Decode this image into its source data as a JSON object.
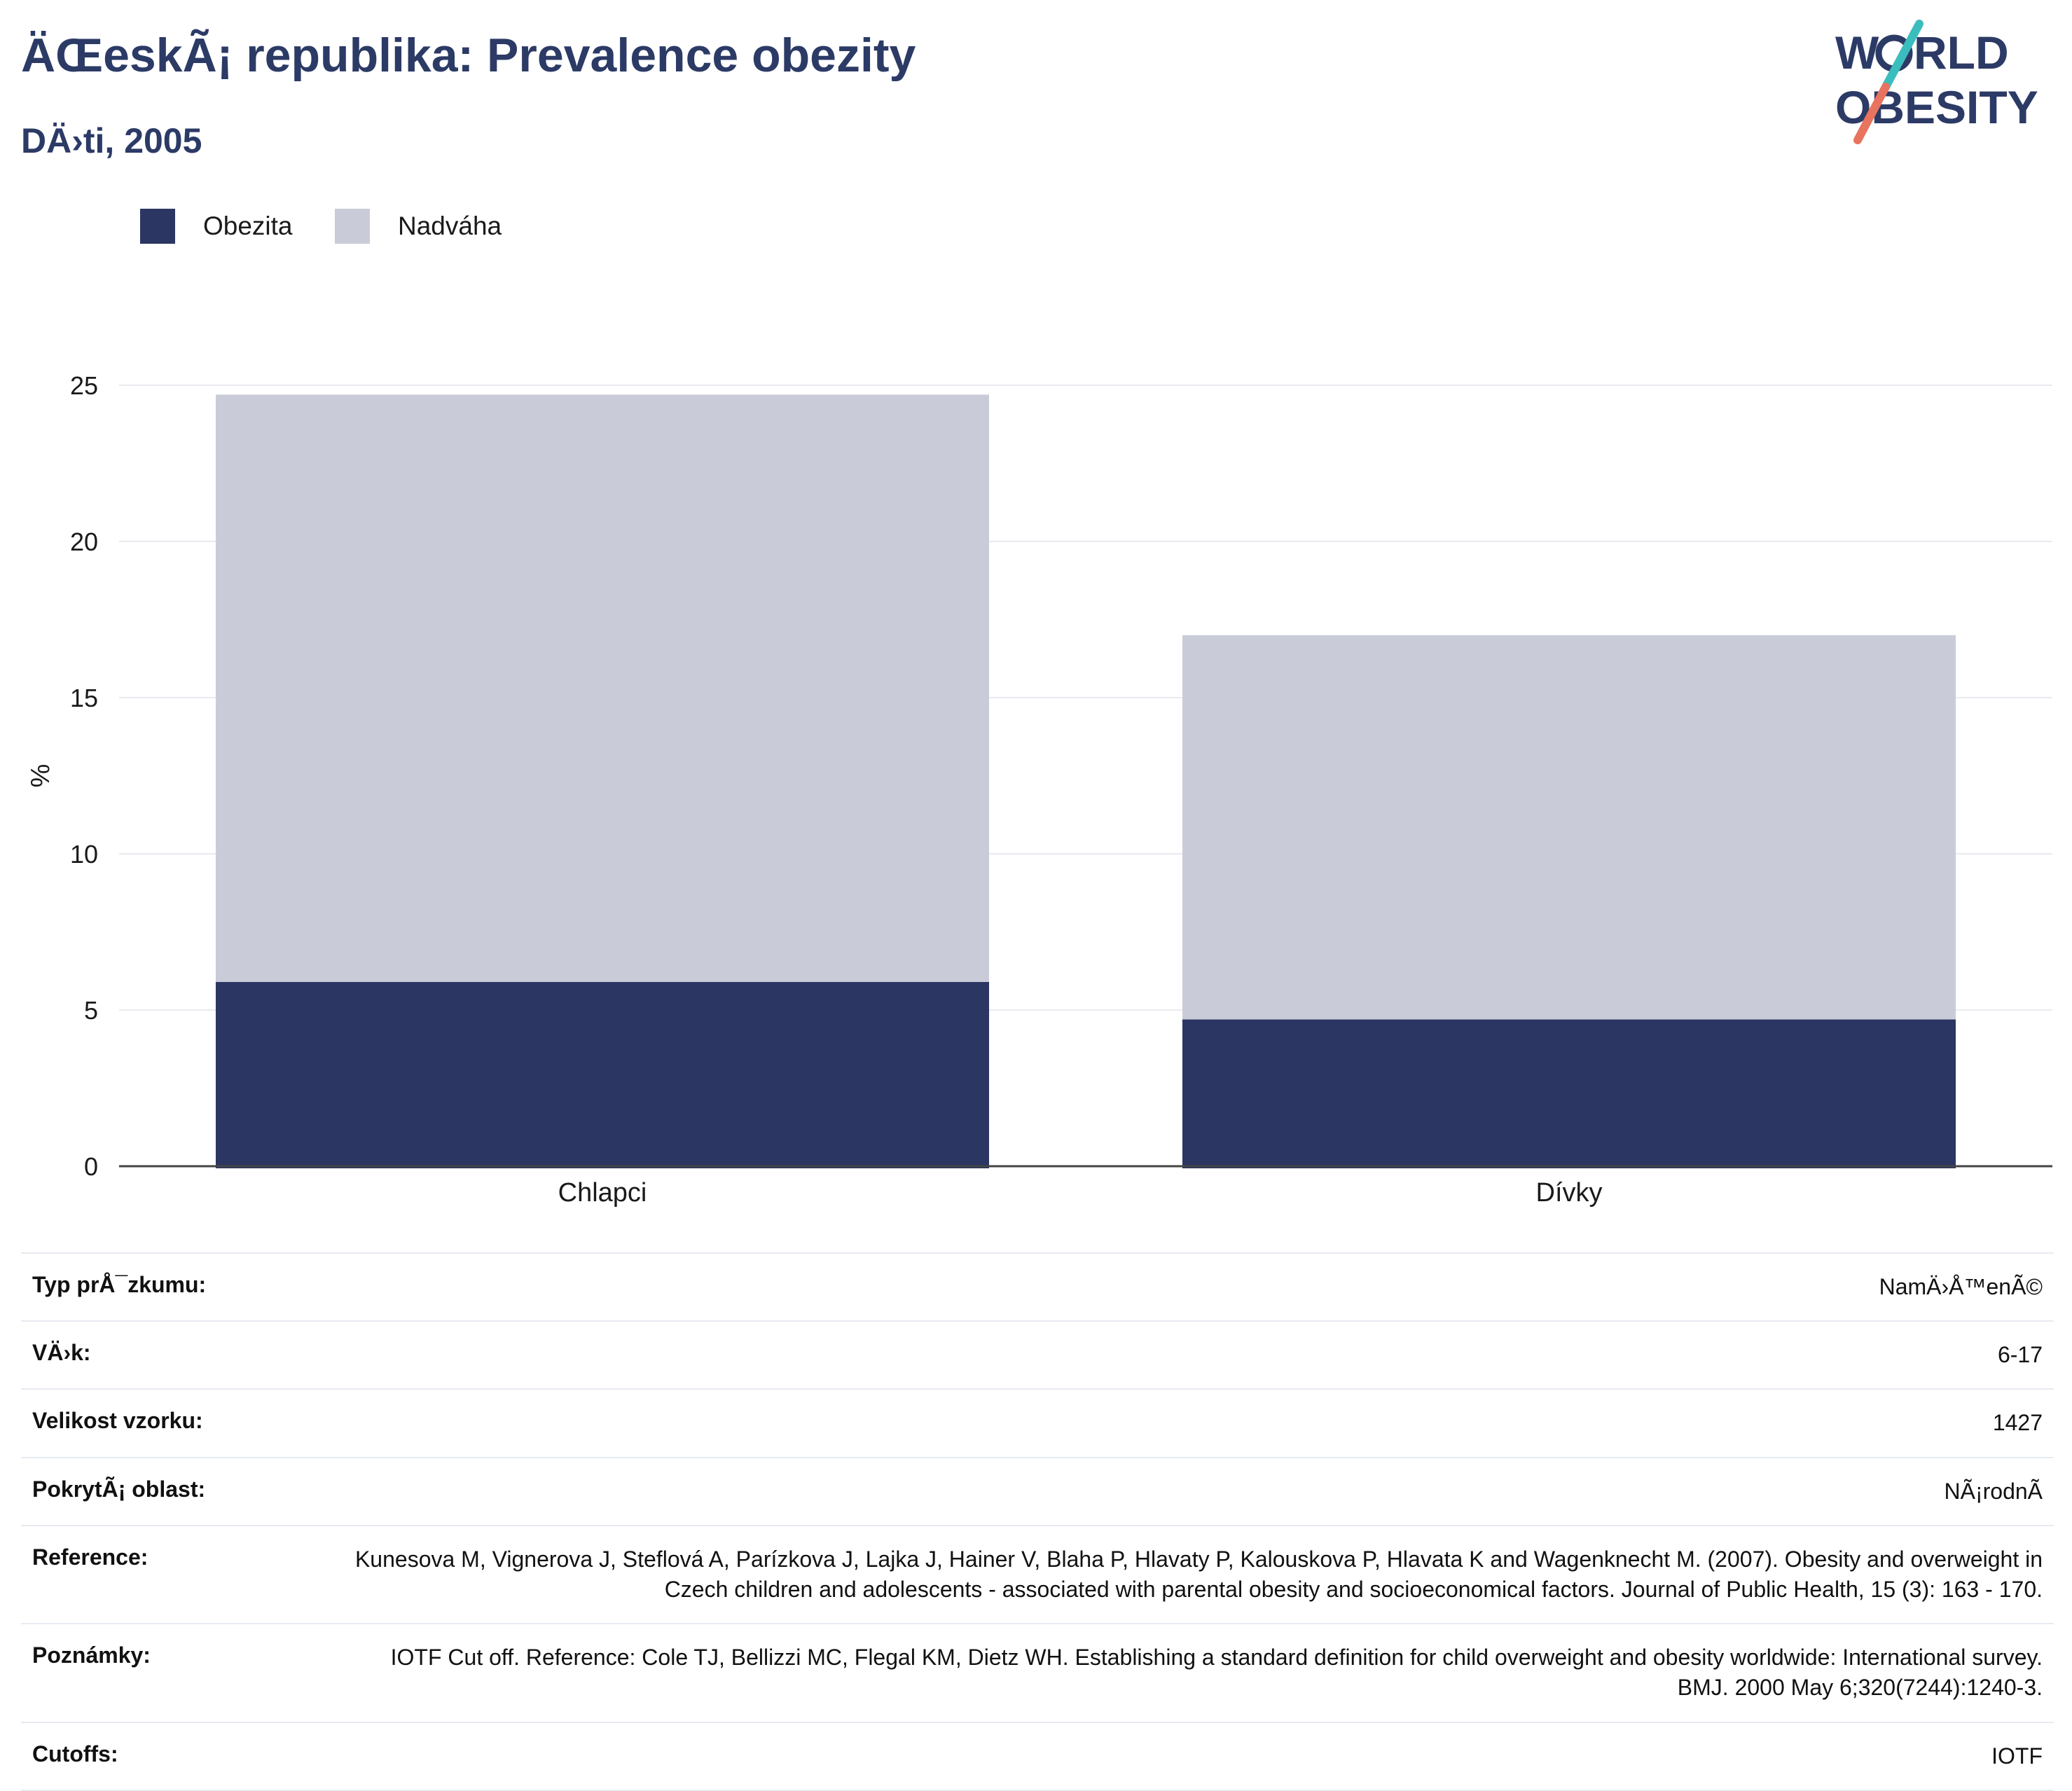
{
  "header": {
    "title": "ÄŒeskÃ¡ republika: Prevalence obezity",
    "subtitle": "DÄ›ti, 2005"
  },
  "logo": {
    "line1": "WORLD",
    "line2": "OBESITY"
  },
  "legend": {
    "items": [
      {
        "label": "Obezita",
        "color": "#2b3663"
      },
      {
        "label": "Nadváha",
        "color": "#c9ccd8"
      }
    ]
  },
  "chart_data": {
    "type": "bar",
    "stacked": true,
    "categories": [
      "Chlapci",
      "Dívky"
    ],
    "series": [
      {
        "name": "Obezita",
        "values": [
          5.9,
          4.7
        ],
        "color": "#2b3663"
      },
      {
        "name": "Nadváha",
        "values": [
          18.8,
          12.3
        ],
        "color": "#c9ccd8"
      }
    ],
    "ylabel": "%",
    "ylim": [
      0,
      25
    ],
    "yticks": [
      0,
      5,
      10,
      15,
      20,
      25
    ],
    "grid": true,
    "legend_position": "top-left"
  },
  "info_table": [
    {
      "label": "Typ prÅ¯zkumu:",
      "value": "NamÄ›Å™enÃ©"
    },
    {
      "label": "VÄ›k:",
      "value": "6-17"
    },
    {
      "label": "Velikost vzorku:",
      "value": "1427"
    },
    {
      "label": "PokrytÃ¡ oblast:",
      "value": "NÃ¡rodnÃ"
    },
    {
      "label": "Reference:",
      "value": "Kunesova M, Vignerova J, Steflová A, Parízkova J, Lajka J, Hainer V, Blaha P, Hlavaty P, Kalouskova P, Hlavata K and Wagenknecht M. (2007). Obesity and overweight in Czech children and adolescents - associated with parental obesity and socioeconomical factors. Journal of Public Health, 15 (3): 163 - 170."
    },
    {
      "label": "Poznámky:",
      "value": "IOTF Cut off. Reference: Cole TJ, Bellizzi MC, Flegal KM, Dietz WH. Establishing a standard definition for child overweight and obesity worldwide: International survey. BMJ. 2000 May 6;320(7244):1240-3."
    },
    {
      "label": "Cutoffs:",
      "value": "IOTF"
    }
  ]
}
